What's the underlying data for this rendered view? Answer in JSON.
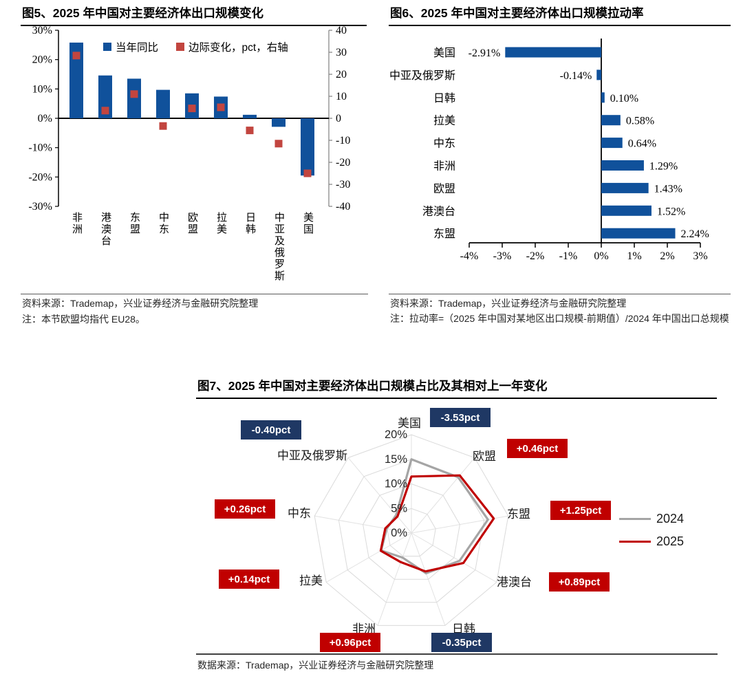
{
  "chart_data": [
    {
      "id": "fig5",
      "type": "bar",
      "title": "图5、2025 年中国对主要经济体出口规模变化",
      "categories": [
        "非洲",
        "港澳台",
        "东盟",
        "中东",
        "欧盟",
        "拉美",
        "日韩",
        "中亚及俄罗斯",
        "美国"
      ],
      "series": [
        {
          "name": "当年同比",
          "type": "column",
          "axis": "left",
          "unit": "%",
          "values": [
            25.8,
            14.6,
            13.5,
            9.7,
            8.5,
            7.4,
            1.2,
            -2.9,
            -19.5
          ]
        },
        {
          "name": "边际变化，pct，右轴",
          "type": "square-marker",
          "axis": "right",
          "values": [
            28.5,
            3.5,
            11,
            -3.5,
            4.5,
            5,
            -5.5,
            -11.5,
            -25
          ]
        }
      ],
      "left_axis": {
        "min": -30,
        "max": 30,
        "step": 10,
        "format": "percent"
      },
      "right_axis": {
        "min": -40,
        "max": 40,
        "step": 10
      },
      "legend_position": "top",
      "colors": {
        "bar": "#10519B",
        "marker": "#C2453F"
      },
      "source": "资料来源：Trademap，兴业证券经济与金融研究院整理",
      "note": "注：本节欧盟均指代 EU28。"
    },
    {
      "id": "fig6",
      "type": "bar",
      "orientation": "horizontal",
      "title": "图6、2025 年中国对主要经济体出口规模拉动率",
      "categories": [
        "美国",
        "中亚及俄罗斯",
        "日韩",
        "拉美",
        "中东",
        "非洲",
        "欧盟",
        "港澳台",
        "东盟"
      ],
      "values": [
        -2.91,
        -0.14,
        0.1,
        0.58,
        0.64,
        1.29,
        1.43,
        1.52,
        2.24
      ],
      "value_labels": [
        "-2.91%",
        "-0.14%",
        "0.10%",
        "0.58%",
        "0.64%",
        "1.29%",
        "1.43%",
        "1.52%",
        "2.24%"
      ],
      "x_axis": {
        "min": -4,
        "max": 3,
        "step": 1,
        "tick_labels": [
          "-4%",
          "-3%",
          "-2%",
          "-1%",
          "0%",
          "1%",
          "2%",
          "3%"
        ]
      },
      "colors": {
        "bar": "#10519B"
      },
      "source": "资料来源：Trademap，兴业证券经济与金融研究院整理",
      "note": "注：拉动率=（2025 年中国对某地区出口规模-前期值）/2024 年中国出口总规模"
    },
    {
      "id": "fig7",
      "type": "radar",
      "title": "图7、2025 年中国对主要经济体出口规模占比及其相对上一年变化",
      "axes": [
        "美国",
        "欧盟",
        "东盟",
        "港澳台",
        "日韩",
        "非洲",
        "拉美",
        "中东",
        "中亚及俄罗斯"
      ],
      "ring_labels": [
        "20%",
        "15%",
        "10%",
        "5%",
        "0%"
      ],
      "r_max": 20,
      "series": [
        {
          "name": "2024",
          "color": "#A5A5A5",
          "values": [
            15.0,
            14.8,
            15.8,
            11.3,
            8.7,
            5.3,
            7.1,
            5.1,
            4.8
          ]
        },
        {
          "name": "2025",
          "color": "#C00000",
          "values": [
            11.5,
            15.3,
            17.0,
            12.2,
            8.3,
            6.3,
            7.2,
            5.4,
            4.4
          ]
        }
      ],
      "badges": [
        {
          "axis": "美国",
          "text": "-3.53pct",
          "color": "#1F3864"
        },
        {
          "axis": "欧盟",
          "text": "+0.46pct",
          "color": "#C00000"
        },
        {
          "axis": "东盟",
          "text": "+1.25pct",
          "color": "#C00000"
        },
        {
          "axis": "港澳台",
          "text": "+0.89pct",
          "color": "#C00000"
        },
        {
          "axis": "日韩",
          "text": "-0.35pct",
          "color": "#1F3864"
        },
        {
          "axis": "非洲",
          "text": "+0.96pct",
          "color": "#C00000"
        },
        {
          "axis": "拉美",
          "text": "+0.14pct",
          "color": "#C00000"
        },
        {
          "axis": "中东",
          "text": "+0.26pct",
          "color": "#C00000"
        },
        {
          "axis": "中亚及俄罗斯",
          "text": "-0.40pct",
          "color": "#1F3864"
        }
      ],
      "legend": [
        "2024",
        "2025"
      ],
      "source": "数据来源：Trademap，兴业证券经济与金融研究院整理"
    }
  ]
}
